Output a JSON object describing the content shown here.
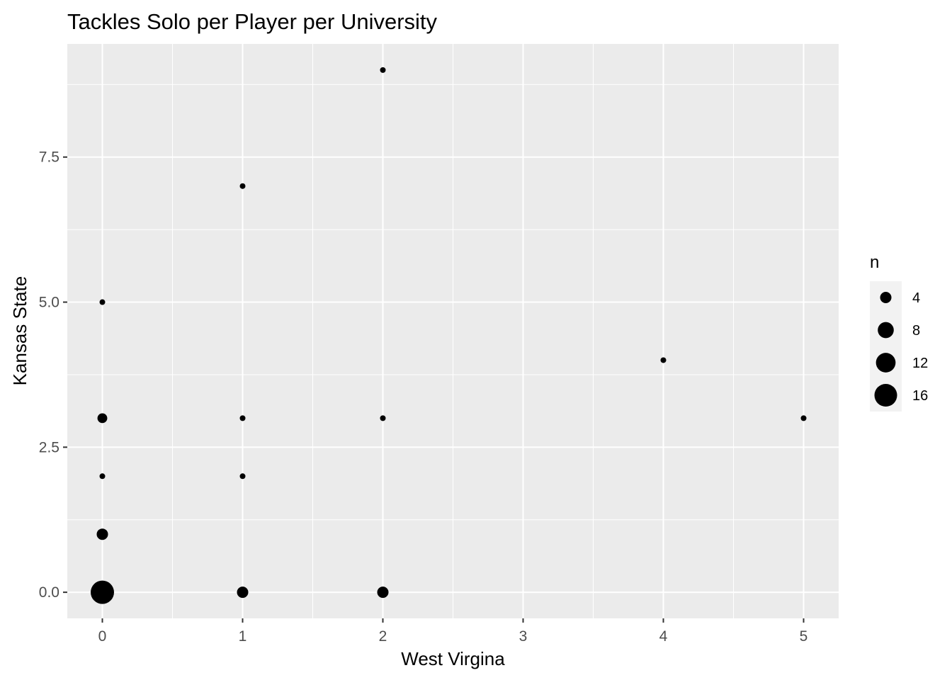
{
  "chart_data": {
    "type": "scatter",
    "title": "Tackles Solo per Player per University",
    "xlabel": "West Virgina",
    "ylabel": "Kansas State",
    "xlim": [
      -0.25,
      5.25
    ],
    "ylim": [
      -0.45,
      9.45
    ],
    "x_ticks": [
      0,
      1,
      2,
      3,
      4,
      5
    ],
    "x_tick_labels": [
      "0",
      "1",
      "2",
      "3",
      "4",
      "5"
    ],
    "y_ticks": [
      0,
      2.5,
      5,
      7.5
    ],
    "y_tick_labels": [
      "0.0",
      "2.5",
      "5.0",
      "7.5"
    ],
    "grid": true,
    "point_color": "#000000",
    "panel_background": "#ebebeb",
    "grid_color": "#ffffff",
    "size_legend": {
      "title": "n",
      "position": "right",
      "entries": [
        {
          "label": "4",
          "n": 4
        },
        {
          "label": "8",
          "n": 8
        },
        {
          "label": "12",
          "n": 12
        },
        {
          "label": "16",
          "n": 16
        }
      ]
    },
    "points": [
      {
        "x": 0,
        "y": 0,
        "n": 17
      },
      {
        "x": 0,
        "y": 1,
        "n": 4
      },
      {
        "x": 0,
        "y": 2,
        "n": 1
      },
      {
        "x": 0,
        "y": 3,
        "n": 3
      },
      {
        "x": 0,
        "y": 5,
        "n": 1
      },
      {
        "x": 1,
        "y": 0,
        "n": 4
      },
      {
        "x": 1,
        "y": 2,
        "n": 1
      },
      {
        "x": 1,
        "y": 3,
        "n": 1
      },
      {
        "x": 1,
        "y": 7,
        "n": 1
      },
      {
        "x": 2,
        "y": 0,
        "n": 4
      },
      {
        "x": 2,
        "y": 3,
        "n": 1
      },
      {
        "x": 2,
        "y": 9,
        "n": 1
      },
      {
        "x": 4,
        "y": 4,
        "n": 1
      },
      {
        "x": 5,
        "y": 3,
        "n": 1
      }
    ]
  }
}
